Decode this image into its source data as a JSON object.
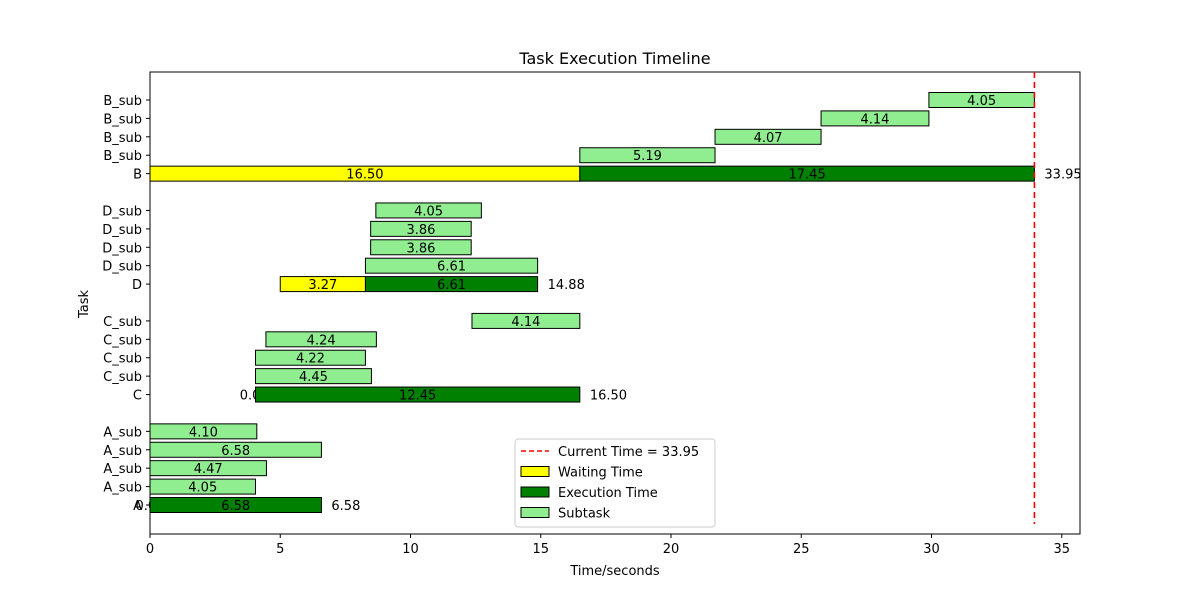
{
  "chart_data": {
    "type": "bar",
    "orientation": "horizontal",
    "title": "Task Execution Timeline",
    "xlabel": "Time/seconds",
    "ylabel": "Task",
    "xlim": [
      0,
      35.7
    ],
    "xticks": [
      0,
      5,
      10,
      15,
      20,
      25,
      30,
      35
    ],
    "rows": [
      {
        "label": "A",
        "wait": 0.0,
        "start": 0.0,
        "exec": 6.58,
        "end_label": "6.58",
        "wait_label": "0.00",
        "wait_label_only": true
      },
      {
        "label": "A_sub",
        "start": 0.0,
        "duration": 4.05
      },
      {
        "label": "A_sub",
        "start": 0.0,
        "duration": 4.47
      },
      {
        "label": "A_sub",
        "start": 0.0,
        "duration": 6.58
      },
      {
        "label": "A_sub",
        "start": 0.0,
        "duration": 4.1
      },
      {
        "gap": true
      },
      {
        "label": "C",
        "wait": 0.05,
        "start": 4.0,
        "exec": 12.45,
        "end_label": "16.50",
        "wait_label": "0.05",
        "wait_label_only": true
      },
      {
        "label": "C_sub",
        "start": 4.05,
        "duration": 4.45
      },
      {
        "label": "C_sub",
        "start": 4.05,
        "duration": 4.22
      },
      {
        "label": "C_sub",
        "start": 4.45,
        "duration": 4.24
      },
      {
        "label": "C_sub",
        "start": 12.36,
        "duration": 4.14
      },
      {
        "gap": true
      },
      {
        "label": "D",
        "wait": 3.27,
        "start": 5.0,
        "exec": 6.61,
        "end_label": "14.88",
        "wait_label": "3.27"
      },
      {
        "label": "D_sub",
        "start": 8.27,
        "duration": 6.61
      },
      {
        "label": "D_sub",
        "start": 8.47,
        "duration": 3.86
      },
      {
        "label": "D_sub",
        "start": 8.47,
        "duration": 3.86
      },
      {
        "label": "D_sub",
        "start": 8.67,
        "duration": 4.05
      },
      {
        "gap": true
      },
      {
        "label": "B",
        "wait": 16.5,
        "start": 0.0,
        "exec": 17.45,
        "end_label": "33.95",
        "wait_label": "16.50"
      },
      {
        "label": "B_sub",
        "start": 16.5,
        "duration": 5.19
      },
      {
        "label": "B_sub",
        "start": 21.69,
        "duration": 4.07
      },
      {
        "label": "B_sub",
        "start": 25.76,
        "duration": 4.14
      },
      {
        "label": "B_sub",
        "start": 29.9,
        "duration": 4.05
      }
    ],
    "current_time": 33.95,
    "legend": {
      "placement": "lower-center",
      "entries": [
        {
          "key": "current",
          "label": "Current Time = 33.95"
        },
        {
          "key": "wait",
          "label": "Waiting Time"
        },
        {
          "key": "exec",
          "label": "Execution Time"
        },
        {
          "key": "sub",
          "label": "Subtask"
        }
      ]
    },
    "colors": {
      "wait": "#ffff00",
      "exec": "#008000",
      "sub": "#90ee90",
      "current": "#ff0000",
      "edge": "#000000"
    }
  }
}
